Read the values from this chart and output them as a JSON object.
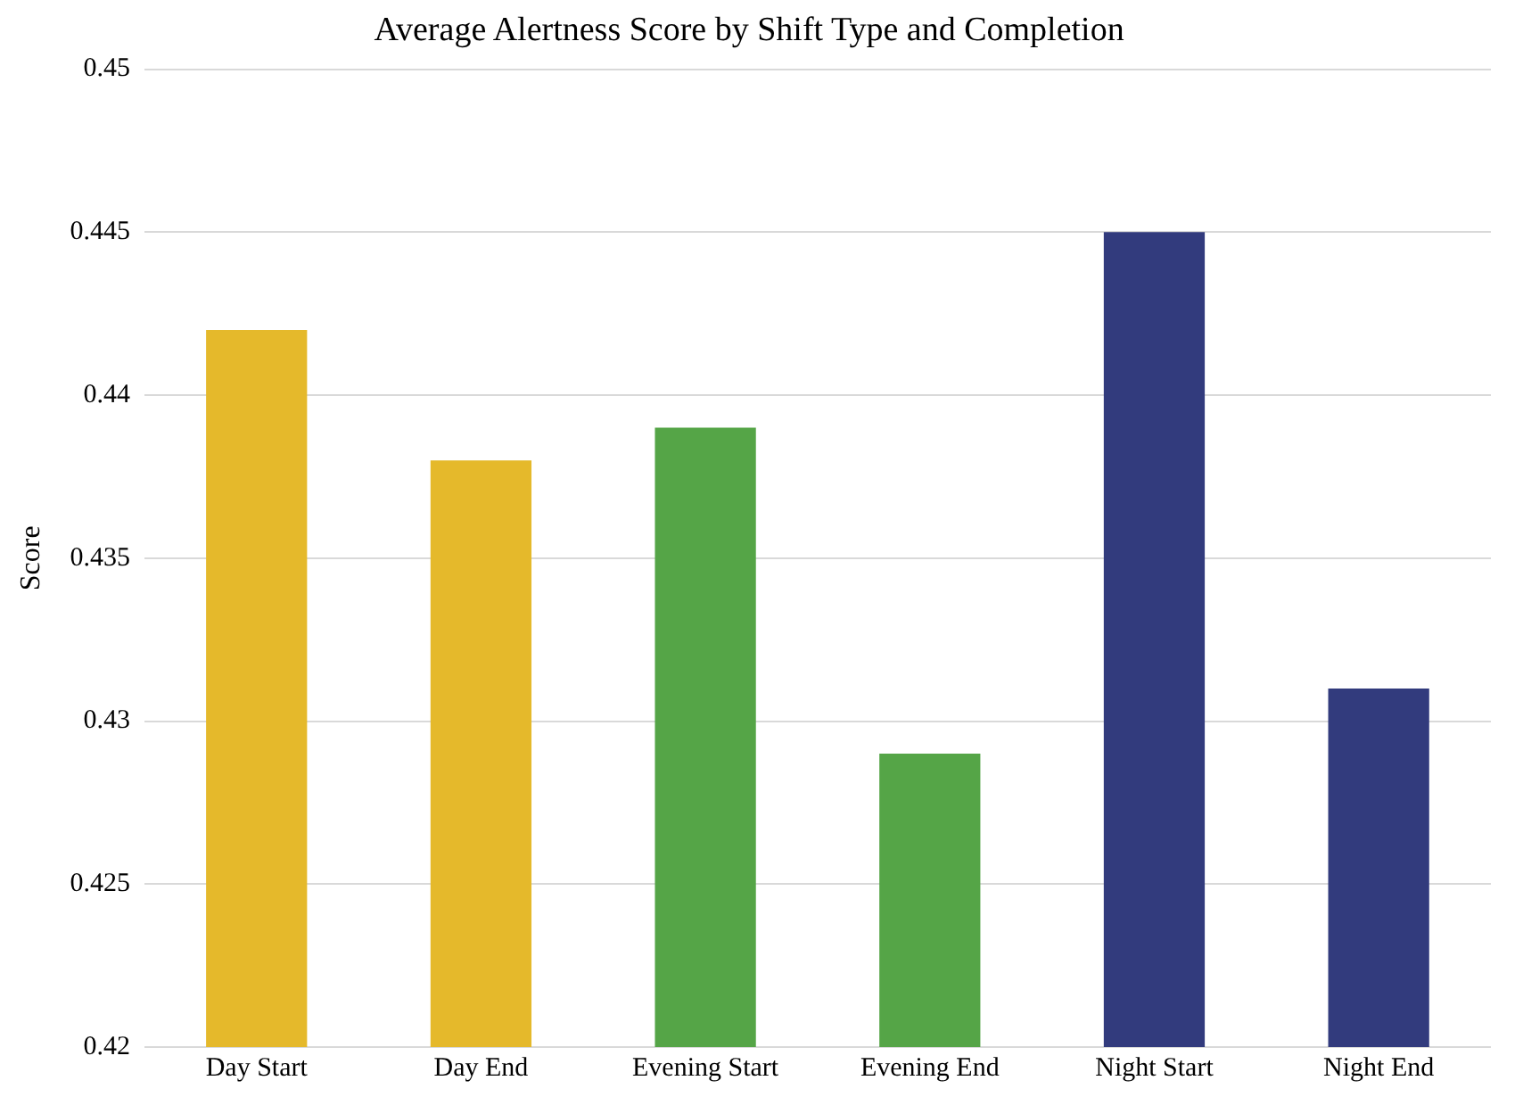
{
  "chart_data": {
    "type": "bar",
    "title": "Average Alertness Score by Shift Type and Completion",
    "ylabel": "Score",
    "categories": [
      "Day Start",
      "Day End",
      "Evening Start",
      "Evening End",
      "Night Start",
      "Night End"
    ],
    "values": [
      0.442,
      0.438,
      0.439,
      0.429,
      0.445,
      0.431
    ],
    "colors": [
      "#e5b92b",
      "#e5b92b",
      "#55a547",
      "#55a547",
      "#323b7d",
      "#323b7d"
    ],
    "ylim": [
      0.42,
      0.45
    ],
    "yticks": [
      0.42,
      0.425,
      0.43,
      0.435,
      0.44,
      0.445,
      0.45
    ],
    "grid": "y",
    "legend": false
  }
}
